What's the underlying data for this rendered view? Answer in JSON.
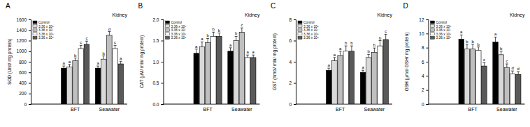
{
  "chart_data": [
    {
      "type": "bar",
      "title": "A",
      "annotation": "Kidney",
      "y_label": "SOD (Unit/ mg protein)",
      "categories": [
        "BFT",
        "Seawater"
      ],
      "series": [
        {
          "name": "Control",
          "color": "#000000",
          "values": [
            680,
            680
          ],
          "errors": [
            40,
            40
          ],
          "letters": [
            "a",
            "a"
          ]
        },
        {
          "name": "3.36 x 10⁶",
          "color": "#d9d9d9",
          "values": [
            700,
            850
          ],
          "errors": [
            50,
            60
          ],
          "letters": [
            "a",
            "b"
          ]
        },
        {
          "name": "3.36 x 10⁷",
          "color": "#bfbfbf",
          "values": [
            820,
            1300
          ],
          "errors": [
            50,
            70
          ],
          "letters": [
            "b",
            "d"
          ]
        },
        {
          "name": "3.36 x 10⁸",
          "color": "#ffffff",
          "values": [
            1050,
            1050
          ],
          "errors": [
            60,
            60
          ],
          "letters": [
            "c",
            "c"
          ]
        },
        {
          "name": "3.36 x 10⁹",
          "color": "#595959",
          "values": [
            1130,
            760
          ],
          "errors": [
            60,
            50
          ],
          "letters": [
            "c",
            "a"
          ]
        }
      ],
      "ylim": [
        0,
        1600
      ],
      "yticks": [
        0,
        200,
        400,
        600,
        800,
        1000,
        1200,
        1400,
        1600
      ],
      "legend": "upper left"
    },
    {
      "type": "bar",
      "title": "B",
      "annotation": "Kidney",
      "y_label": "CAT (μM/ min/ mg protein)",
      "categories": [
        "BFT",
        "Seawater"
      ],
      "series": [
        {
          "name": "Control",
          "color": "#000000",
          "values": [
            1.2,
            1.25
          ],
          "errors": [
            0.1,
            0.08
          ],
          "letters": [
            "a",
            "a"
          ]
        },
        {
          "name": "3.36 x 10⁶",
          "color": "#d9d9d9",
          "values": [
            1.35,
            1.5
          ],
          "errors": [
            0.12,
            0.1
          ],
          "letters": [
            "a",
            "b"
          ]
        },
        {
          "name": "3.36 x 10⁷",
          "color": "#bfbfbf",
          "values": [
            1.45,
            1.7
          ],
          "errors": [
            0.1,
            0.1
          ],
          "letters": [
            "b",
            "c"
          ]
        },
        {
          "name": "3.36 x 10⁸",
          "color": "#ffffff",
          "values": [
            1.6,
            1.1
          ],
          "errors": [
            0.1,
            0.06
          ],
          "letters": [
            "b",
            "a"
          ]
        },
        {
          "name": "3.36 x 10⁹",
          "color": "#595959",
          "values": [
            1.6,
            1.1
          ],
          "errors": [
            0.08,
            0.06
          ],
          "letters": [
            "b",
            "a"
          ]
        }
      ],
      "ylim": [
        0,
        2
      ],
      "yticks": [
        {
          "value": 0,
          "label": "0.0"
        },
        {
          "value": 0.5,
          "label": "0.5"
        },
        {
          "value": 1,
          "label": "1.0"
        },
        {
          "value": 1.5,
          "label": "1.5"
        },
        {
          "value": 2,
          "label": "2.0"
        }
      ],
      "legend": "upper left"
    },
    {
      "type": "bar",
      "title": "C",
      "annotation": "Kidney",
      "y_label": "GST (nmol/ min/ mg protein)",
      "categories": [
        "BFT",
        "Seawater"
      ],
      "series": [
        {
          "name": "Control",
          "color": "#000000",
          "values": [
            3.2,
            3.0
          ],
          "errors": [
            0.2,
            0.2
          ],
          "letters": [
            "a",
            "a"
          ]
        },
        {
          "name": "3.36 x 10⁶",
          "color": "#d9d9d9",
          "values": [
            4.1,
            4.4
          ],
          "errors": [
            0.3,
            0.3
          ],
          "letters": [
            "a",
            "b"
          ]
        },
        {
          "name": "3.36 x 10⁷",
          "color": "#bfbfbf",
          "values": [
            4.6,
            4.9
          ],
          "errors": [
            0.4,
            0.4
          ],
          "letters": [
            "a",
            "b"
          ]
        },
        {
          "name": "3.36 x 10⁸",
          "color": "#ffffff",
          "values": [
            5.0,
            5.5
          ],
          "errors": [
            0.5,
            0.5
          ],
          "letters": [
            "b",
            "b"
          ]
        },
        {
          "name": "3.36 x 10⁹",
          "color": "#595959",
          "values": [
            5.0,
            6.1
          ],
          "errors": [
            0.5,
            0.5
          ],
          "letters": [
            "b",
            "c"
          ]
        }
      ],
      "ylim": [
        0,
        8
      ],
      "yticks": [
        0,
        2,
        4,
        6,
        8
      ],
      "legend": "upper left"
    },
    {
      "type": "bar",
      "title": "D",
      "annotation": "Kidney",
      "y_label": "GSH (μmol GSH/ mg protein)",
      "categories": [
        "BFT",
        "Seawater"
      ],
      "series": [
        {
          "name": "Control",
          "color": "#000000",
          "values": [
            9.2,
            8.8
          ],
          "errors": [
            0.6,
            0.7
          ],
          "letters": [
            "a",
            "a"
          ]
        },
        {
          "name": "3.36 x 10⁶",
          "color": "#d9d9d9",
          "values": [
            7.8,
            7.0
          ],
          "errors": [
            0.7,
            0.5
          ],
          "letters": [
            "b",
            "b"
          ]
        },
        {
          "name": "3.36 x 10⁷",
          "color": "#bfbfbf",
          "values": [
            7.8,
            5.2
          ],
          "errors": [
            0.7,
            0.5
          ],
          "letters": [
            "b",
            "c"
          ]
        },
        {
          "name": "3.36 x 10⁸",
          "color": "#ffffff",
          "values": [
            7.6,
            4.3
          ],
          "errors": [
            0.5,
            0.4
          ],
          "letters": [
            "b",
            "d"
          ]
        },
        {
          "name": "3.36 x 10⁹",
          "color": "#595959",
          "values": [
            5.4,
            4.2
          ],
          "errors": [
            0.5,
            0.4
          ],
          "letters": [
            "c",
            "d"
          ]
        }
      ],
      "ylim": [
        0,
        12
      ],
      "yticks": [
        0,
        2,
        4,
        6,
        8,
        10,
        12
      ],
      "legend": "upper left"
    }
  ]
}
